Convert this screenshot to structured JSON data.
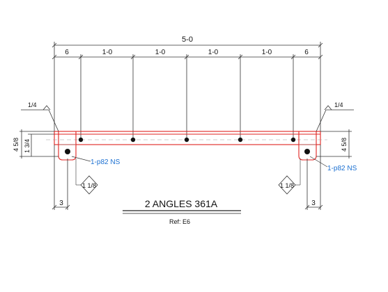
{
  "title": "2 ANGLES 361A",
  "reference": "Ref: E6",
  "dimensions": {
    "overall": "5-0",
    "end_left": "6",
    "end_right": "6",
    "spacing": [
      "1-0",
      "1-0",
      "1-0",
      "1-0"
    ],
    "bottom_left": "3",
    "bottom_right": "3"
  },
  "annotations": {
    "weld_left": "1/4",
    "weld_right": "1/4",
    "height_left_a": "4 5/8",
    "height_left_b": "1 3/4",
    "height_right": "4 5/8",
    "bolt_note_left": "1-p82 NS",
    "bolt_note_right": "1-p82 NS",
    "gauge_left": "1 1/8",
    "gauge_right": "1 1/8"
  },
  "colors": {
    "outline": "#e0221f",
    "callout": "#1a6fd1",
    "line": "#333333"
  }
}
